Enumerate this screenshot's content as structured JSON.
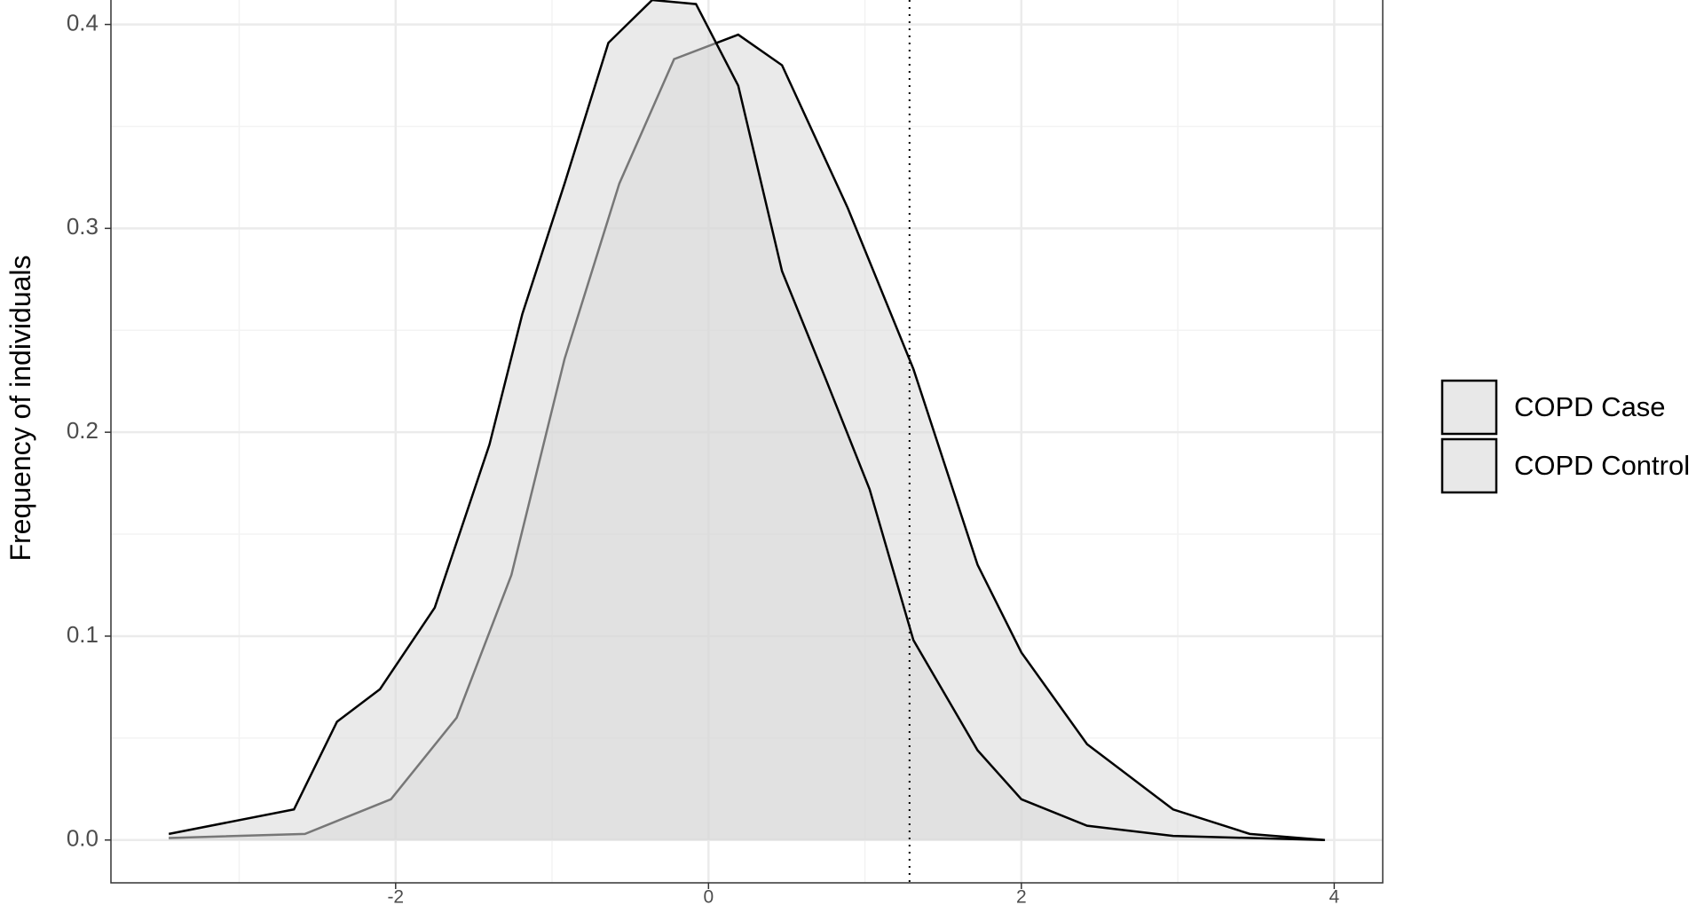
{
  "chart_data": {
    "type": "density",
    "y_label": "Frequency of individuals",
    "xlim": [
      -3.82,
      4.31
    ],
    "ylim": [
      -0.021,
      0.412
    ],
    "xticks": [
      -2,
      0,
      2,
      4
    ],
    "yticks": [
      {
        "value": 0,
        "label": "0.0"
      },
      0.1,
      0.2,
      0.3,
      0.4
    ],
    "grid": true,
    "vline": 1.285,
    "legend_position": "right",
    "series": [
      {
        "name": "COPD Case",
        "color": "#d9d9d9",
        "x": [
          -3.45,
          -2.58,
          -2.03,
          -1.61,
          -1.26,
          -0.92,
          -0.57,
          -0.22,
          0.19,
          0.47,
          0.89,
          1.31,
          1.72,
          2.0,
          2.42,
          2.97,
          3.46,
          3.94
        ],
        "values": [
          0.001,
          0.003,
          0.02,
          0.06,
          0.13,
          0.236,
          0.322,
          0.383,
          0.395,
          0.38,
          0.31,
          0.231,
          0.135,
          0.092,
          0.047,
          0.015,
          0.003,
          0.0
        ]
      },
      {
        "name": "COPD Control",
        "color": "#d9d9d9",
        "x": [
          -3.45,
          -2.65,
          -2.375,
          -2.1,
          -1.75,
          -1.4,
          -1.19,
          -0.92,
          -0.64,
          -0.36,
          -0.08,
          0.19,
          0.47,
          0.75,
          1.03,
          1.31,
          1.72,
          2.0,
          2.42,
          2.97,
          3.94
        ],
        "values": [
          0.003,
          0.015,
          0.058,
          0.074,
          0.114,
          0.194,
          0.258,
          0.322,
          0.391,
          0.412,
          0.41,
          0.37,
          0.279,
          0.226,
          0.172,
          0.098,
          0.044,
          0.02,
          0.007,
          0.002,
          0.0
        ]
      }
    ]
  }
}
